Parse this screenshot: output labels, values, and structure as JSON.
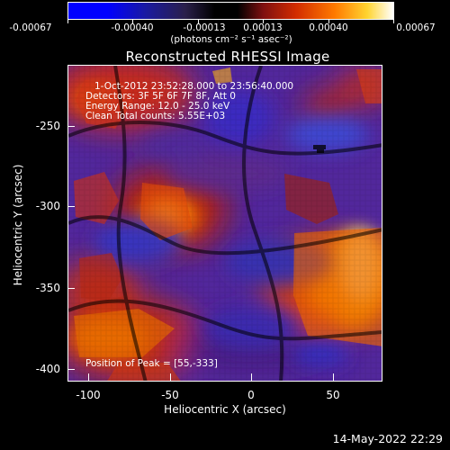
{
  "colorbar": {
    "tick_labels": [
      "-0.00067",
      "-0.00040",
      "-0.00013",
      "0.00013",
      "0.00040",
      "0.00067"
    ],
    "units": "(photons cm⁻² s⁻¹ asec⁻²)"
  },
  "image": {
    "title": "Reconstructed RHESSI Image",
    "time_range": "1-Oct-2012 23:52:28.000 to 23:56:40.000",
    "detectors": "Detectors: 3F 5F 6F 7F 8F, Att 0",
    "energy_range": "Energy Range: 12.0 - 25.0 keV",
    "clean_line": "Clean     Total counts: 5.55E+03",
    "peak_position": "Position of Peak = [55,-333]"
  },
  "axes": {
    "xlabel": "Heliocentric X (arcsec)",
    "ylabel": "Heliocentric Y (arcsec)",
    "x_ticks": [
      "-100",
      "-50",
      "0",
      "50"
    ],
    "y_ticks": [
      "-250",
      "-300",
      "-350",
      "-400"
    ]
  },
  "footer": {
    "timestamp": "14-May-2022 22:29"
  },
  "colors": {
    "background": "#000000",
    "axis": "#ffffff"
  }
}
